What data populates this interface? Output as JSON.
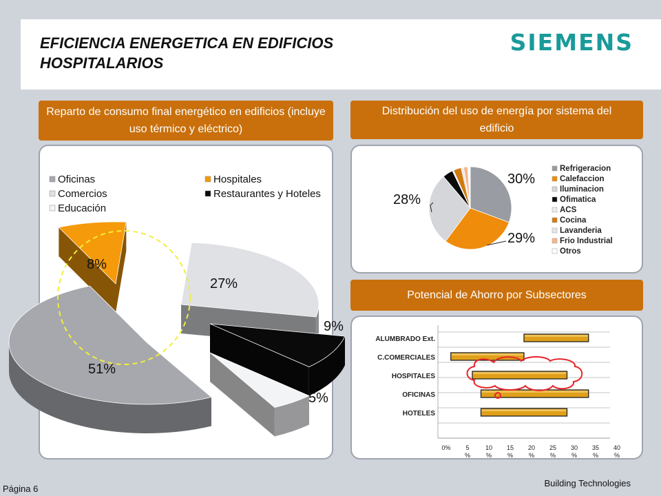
{
  "header": {
    "title": "EFICIENCIA ENERGETICA EN EDIFICIOS HOSPITALARIOS",
    "logo": "SIEMENS"
  },
  "left_band": "Reparto de consumo final energético en edificios (incluye uso térmico y eléctrico)",
  "right_band_top": "Distribución del uso de energía por sistema del edificio",
  "right_band_bottom": "Potencial de Ahorro por Subsectores",
  "footer": {
    "page": "Página 6",
    "company": "Building Technologies"
  },
  "colors": {
    "band": "#c9700c",
    "accent_gold": "#e0a01a",
    "highlight_yellow": "#f2ee3a",
    "highlight_red": "#e8232a"
  },
  "chart_data": [
    {
      "type": "pie",
      "style": "3d-exploded",
      "legend": [
        "Oficinas",
        "Hospitales",
        "Comercios",
        "Restaurantes y Hoteles",
        "Educación"
      ],
      "slices": [
        {
          "label": "Oficinas",
          "value": 51,
          "display": "51%",
          "color": "#a6a8ad"
        },
        {
          "label": "Hospitales",
          "value": 8,
          "display": "8%",
          "color": "#f59a0a"
        },
        {
          "label": "Comercios",
          "value": 27,
          "display": "27%",
          "color": "#dfe1e5"
        },
        {
          "label": "Restaurantes y Hoteles",
          "value": 9,
          "display": "9%",
          "color": "#0a0a0a"
        },
        {
          "label": "Educación",
          "value": 5,
          "display": "5%",
          "color": "#f3f4f6"
        }
      ],
      "highlight": "Hospitales"
    },
    {
      "type": "pie",
      "legend": [
        "Refrigeracion",
        "Calefaccion",
        "Iluminacion",
        "Ofimatica",
        "ACS",
        "Cocina",
        "Lavanderia",
        "Frio Industrial",
        "Otros"
      ],
      "slices": [
        {
          "label": "Refrigeracion",
          "value": 30,
          "color": "#9a9ca3"
        },
        {
          "label": "Calefaccion",
          "value": 29,
          "color": "#ef8c0c"
        },
        {
          "label": "Iluminacion",
          "value": 28,
          "color": "#d4d6da"
        },
        {
          "label": "Ofimatica",
          "value": 4,
          "color": "#0a0a0a"
        },
        {
          "label": "ACS",
          "value": 0.5,
          "color": "#ececee"
        },
        {
          "label": "Cocina",
          "value": 3,
          "color": "#d07a10"
        },
        {
          "label": "Lavanderia",
          "value": 1,
          "color": "#e6e7ea"
        },
        {
          "label": "Frio Industrial",
          "value": 1.5,
          "color": "#f6b58a"
        },
        {
          "label": "Otros",
          "value": 1,
          "color": "#ffffff"
        }
      ],
      "data_labels": [
        "30%",
        "29%",
        "28%"
      ]
    },
    {
      "type": "bar",
      "orientation": "horizontal-floating",
      "categories": [
        "ALUMBRADO Ext.",
        "C.COMERCIALES",
        "HOSPITALES",
        "OFICINAS",
        "HOTELES"
      ],
      "ranges": [
        [
          20,
          35
        ],
        [
          3,
          20
        ],
        [
          8,
          30
        ],
        [
          10,
          35
        ],
        [
          10,
          30
        ]
      ],
      "xlim": [
        0,
        40
      ],
      "xticks": [
        [
          "0%",
          ""
        ],
        [
          "5",
          "%"
        ],
        [
          "10",
          "%"
        ],
        [
          "15",
          "%"
        ],
        [
          "20",
          "%"
        ],
        [
          "25",
          "%"
        ],
        [
          "30",
          "%"
        ],
        [
          "35",
          "%"
        ],
        [
          "40",
          "%"
        ]
      ],
      "highlight": "HOSPITALES"
    }
  ]
}
